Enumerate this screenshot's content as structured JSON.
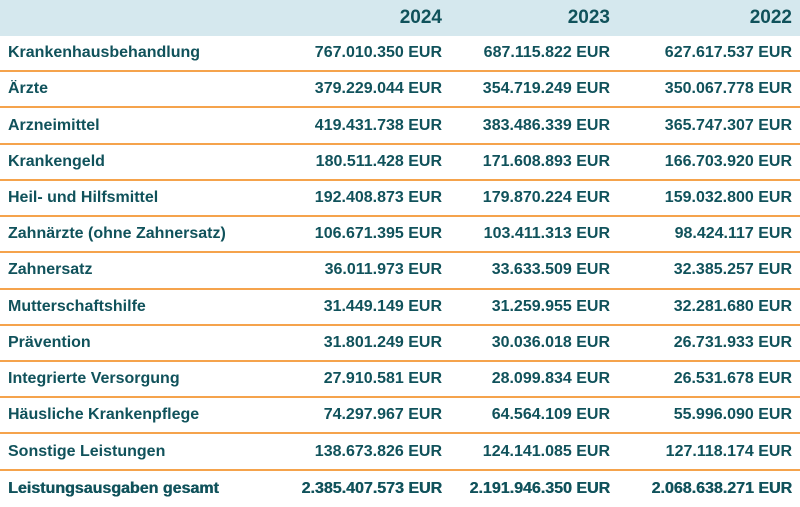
{
  "colors": {
    "text": "#10525b",
    "header_bg": "#d5e8ee",
    "divider": "#f5a34c",
    "background": "#ffffff"
  },
  "table": {
    "columns": [
      "",
      "2024",
      "2023",
      "2022"
    ],
    "rows": [
      {
        "label": "Krankenhausbehandlung",
        "values": [
          "767.010.350 EUR",
          "687.115.822 EUR",
          "627.617.537 EUR"
        ],
        "total": false
      },
      {
        "label": "Ärzte",
        "values": [
          "379.229.044 EUR",
          "354.719.249 EUR",
          "350.067.778 EUR"
        ],
        "total": false
      },
      {
        "label": "Arzneimittel",
        "values": [
          "419.431.738 EUR",
          "383.486.339 EUR",
          "365.747.307 EUR"
        ],
        "total": false
      },
      {
        "label": "Krankengeld",
        "values": [
          "180.511.428 EUR",
          "171.608.893 EUR",
          "166.703.920 EUR"
        ],
        "total": false
      },
      {
        "label": "Heil- und Hilfsmittel",
        "values": [
          "192.408.873 EUR",
          "179.870.224 EUR",
          "159.032.800 EUR"
        ],
        "total": false
      },
      {
        "label": "Zahnärzte (ohne Zahnersatz)",
        "values": [
          "106.671.395 EUR",
          "103.411.313 EUR",
          "98.424.117 EUR"
        ],
        "total": false
      },
      {
        "label": "Zahnersatz",
        "values": [
          "36.011.973 EUR",
          "33.633.509 EUR",
          "32.385.257 EUR"
        ],
        "total": false
      },
      {
        "label": "Mutterschaftshilfe",
        "values": [
          "31.449.149 EUR",
          "31.259.955 EUR",
          "32.281.680 EUR"
        ],
        "total": false
      },
      {
        "label": "Prävention",
        "values": [
          "31.801.249 EUR",
          "30.036.018 EUR",
          "26.731.933 EUR"
        ],
        "total": false
      },
      {
        "label": "Integrierte Versorgung",
        "values": [
          "27.910.581 EUR",
          "28.099.834 EUR",
          "26.531.678 EUR"
        ],
        "total": false
      },
      {
        "label": "Häusliche Krankenpflege",
        "values": [
          "74.297.967 EUR",
          "64.564.109 EUR",
          "55.996.090 EUR"
        ],
        "total": false
      },
      {
        "label": "Sonstige Leistungen",
        "values": [
          "138.673.826 EUR",
          "124.141.085 EUR",
          "127.118.174 EUR"
        ],
        "total": false
      },
      {
        "label": "Leistungsausgaben gesamt",
        "values": [
          "2.385.407.573 EUR",
          "2.191.946.350 EUR",
          "2.068.638.271 EUR"
        ],
        "total": true
      }
    ]
  },
  "chart_data": {
    "type": "table",
    "title": "",
    "categories": [
      "2024",
      "2023",
      "2022"
    ],
    "unit": "EUR",
    "series": [
      {
        "name": "Krankenhausbehandlung",
        "values": [
          767010350,
          687115822,
          627617537
        ]
      },
      {
        "name": "Ärzte",
        "values": [
          379229044,
          354719249,
          350067778
        ]
      },
      {
        "name": "Arzneimittel",
        "values": [
          419431738,
          383486339,
          365747307
        ]
      },
      {
        "name": "Krankengeld",
        "values": [
          180511428,
          171608893,
          166703920
        ]
      },
      {
        "name": "Heil- und Hilfsmittel",
        "values": [
          192408873,
          179870224,
          159032800
        ]
      },
      {
        "name": "Zahnärzte (ohne Zahnersatz)",
        "values": [
          106671395,
          103411313,
          98424117
        ]
      },
      {
        "name": "Zahnersatz",
        "values": [
          36011973,
          33633509,
          32385257
        ]
      },
      {
        "name": "Mutterschaftshilfe",
        "values": [
          31449149,
          31259955,
          32281680
        ]
      },
      {
        "name": "Prävention",
        "values": [
          31801249,
          30036018,
          26731933
        ]
      },
      {
        "name": "Integrierte Versorgung",
        "values": [
          27910581,
          28099834,
          26531678
        ]
      },
      {
        "name": "Häusliche Krankenpflege",
        "values": [
          74297967,
          64564109,
          55996090
        ]
      },
      {
        "name": "Sonstige Leistungen",
        "values": [
          138673826,
          124141085,
          127118174
        ]
      },
      {
        "name": "Leistungsausgaben gesamt",
        "values": [
          2385407573,
          2191946350,
          2068638271
        ]
      }
    ]
  }
}
